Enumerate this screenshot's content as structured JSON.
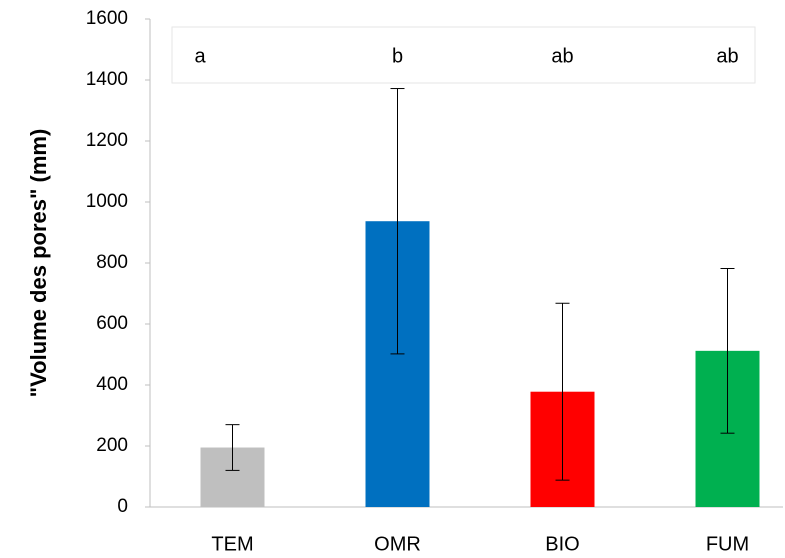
{
  "chart_data": {
    "type": "bar",
    "y_label": "\"Volume des pores\" (mm)",
    "categories": [
      "TEM",
      "OMR",
      "BIO",
      "FUM"
    ],
    "values": [
      195,
      937,
      378,
      512
    ],
    "errors": [
      75,
      435,
      290,
      270
    ],
    "annotations": [
      "a",
      "b",
      "ab",
      "ab"
    ],
    "colors": [
      "#bfbfbf",
      "#0070c0",
      "#ff0000",
      "#00b050"
    ],
    "ylim": [
      0,
      1600
    ],
    "yticks": [
      0,
      200,
      400,
      600,
      800,
      1000,
      1200,
      1400,
      1600
    ]
  }
}
